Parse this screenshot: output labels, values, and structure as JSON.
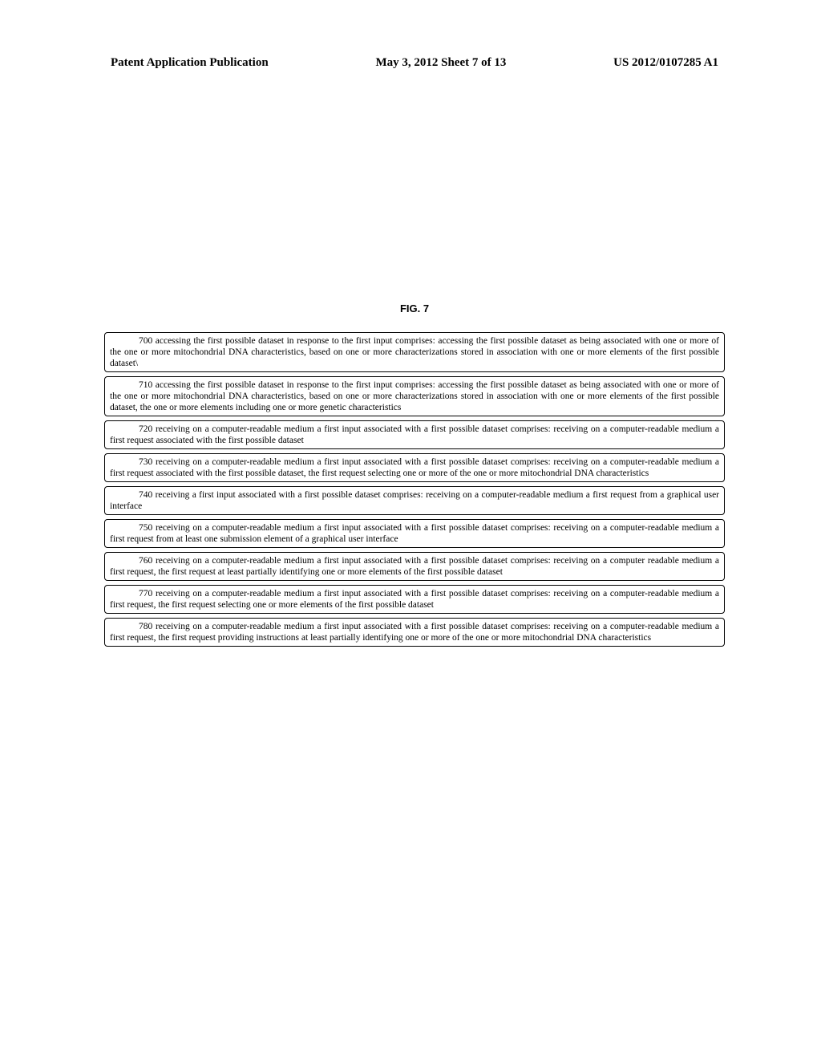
{
  "header": {
    "left": "Patent Application Publication",
    "center": "May 3, 2012  Sheet 7 of 13",
    "right": "US 2012/0107285 A1"
  },
  "figure_title": "FIG. 7",
  "entries": [
    {
      "num": "700",
      "text": "accessing the first possible dataset in response to the first input comprises:  accessing the first possible dataset as being associated with one or more of the one or more mitochondrial DNA characteristics, based on one or more characterizations stored in association with one or more elements of the first possible dataset\\"
    },
    {
      "num": "710",
      "text": "accessing the first possible dataset in response to the first input comprises:  accessing the first possible dataset as being associated with one or more of the one or more mitochondrial DNA characteristics, based on one or more characterizations stored in association with one or more elements of the first possible dataset, the one or more elements including one or more genetic characteristics"
    },
    {
      "num": "720",
      "text": "receiving on a computer-readable medium a first input associated with a first possible dataset comprises:  receiving on a computer-readable medium a first request associated with the first possible dataset"
    },
    {
      "num": "730",
      "text": "receiving on a computer-readable medium a first input associated with a first possible dataset comprises:  receiving on a computer-readable medium a first request associated with the first possible dataset, the first request selecting one or more of the one or more mitochondrial DNA characteristics"
    },
    {
      "num": "740",
      "text": "receiving a first input associated with a first possible dataset comprises:  receiving on a computer-readable medium a first request from a graphical user interface"
    },
    {
      "num": "750",
      "text": "receiving on a computer-readable medium a first input associated with a first possible dataset comprises:  receiving on a computer-readable medium a first request from at least one submission element of a graphical user interface"
    },
    {
      "num": "760",
      "text": "receiving on a computer-readable medium a first input associated with a first possible dataset comprises:  receiving on a computer readable medium a first request, the first request at least partially identifying one or more elements of the first possible dataset"
    },
    {
      "num": "770",
      "text": "receiving on a computer-readable medium a first input associated with a first possible dataset comprises:  receiving on a computer-readable medium a first request, the first request selecting one or more elements of the first possible dataset"
    },
    {
      "num": "780",
      "text": "receiving on a computer-readable medium a first input associated with a first possible dataset comprises:  receiving on a computer-readable medium a first request, the first request providing instructions at least partially identifying one or more of the one or more mitochondrial DNA characteristics"
    }
  ],
  "colors": {
    "background": "#ffffff",
    "text": "#000000",
    "border": "#000000"
  }
}
